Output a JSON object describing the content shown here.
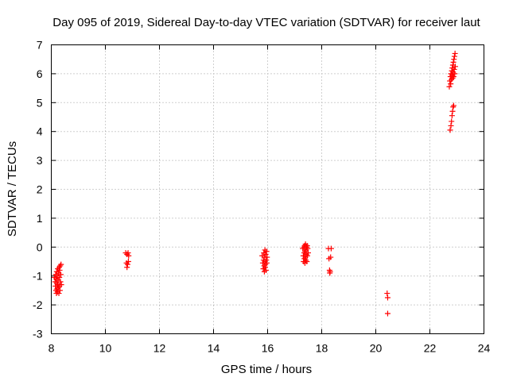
{
  "chart_data": {
    "type": "scatter",
    "title": "Day 095 of 2019, Sidereal Day-to-day VTEC variation (SDTVAR) for receiver laut",
    "xlabel": "GPS time / hours",
    "ylabel": "SDTVAR / TECUs",
    "xlim": [
      8,
      24
    ],
    "ylim": [
      -3,
      7
    ],
    "x_ticks": [
      "8",
      "10",
      "12",
      "14",
      "16",
      "18",
      "20",
      "22",
      "24"
    ],
    "y_ticks": [
      "-3",
      "-2",
      "-1",
      "0",
      "1",
      "2",
      "3",
      "4",
      "5",
      "6",
      "7"
    ],
    "x_tick_values": [
      8,
      10,
      12,
      14,
      16,
      18,
      20,
      22,
      24
    ],
    "y_tick_values": [
      -3,
      -2,
      -1,
      0,
      1,
      2,
      3,
      4,
      5,
      6,
      7
    ],
    "grid": true,
    "marker": "+",
    "series": [
      {
        "name": "SDTVAR",
        "color": "#ff0000",
        "points": [
          [
            8.12,
            -1.05
          ],
          [
            8.14,
            -1.2
          ],
          [
            8.15,
            -1.35
          ],
          [
            8.16,
            -0.95
          ],
          [
            8.17,
            -1.5
          ],
          [
            8.18,
            -1.1
          ],
          [
            8.19,
            -1.6
          ],
          [
            8.2,
            -0.85
          ],
          [
            8.2,
            -1.25
          ],
          [
            8.21,
            -1.45
          ],
          [
            8.22,
            -1.0
          ],
          [
            8.23,
            -1.55
          ],
          [
            8.24,
            -0.75
          ],
          [
            8.24,
            -1.3
          ],
          [
            8.25,
            -1.15
          ],
          [
            8.26,
            -1.4
          ],
          [
            8.27,
            -0.9
          ],
          [
            8.28,
            -1.6
          ],
          [
            8.29,
            -0.7
          ],
          [
            8.3,
            -1.05
          ],
          [
            8.3,
            -1.35
          ],
          [
            8.31,
            -0.8
          ],
          [
            8.32,
            -1.5
          ],
          [
            8.33,
            -0.65
          ],
          [
            8.34,
            -1.2
          ],
          [
            8.35,
            -0.95
          ],
          [
            8.36,
            -0.6
          ],
          [
            8.37,
            -1.3
          ],
          [
            10.75,
            -0.2
          ],
          [
            10.78,
            -0.55
          ],
          [
            10.8,
            -0.25
          ],
          [
            10.8,
            -0.7
          ],
          [
            10.82,
            -0.6
          ],
          [
            10.84,
            -0.2
          ],
          [
            10.85,
            -0.5
          ],
          [
            10.86,
            -0.3
          ],
          [
            15.8,
            -0.3
          ],
          [
            15.82,
            -0.55
          ],
          [
            15.84,
            -0.75
          ],
          [
            15.85,
            -0.45
          ],
          [
            15.86,
            -0.2
          ],
          [
            15.87,
            -0.65
          ],
          [
            15.88,
            -0.85
          ],
          [
            15.89,
            -0.35
          ],
          [
            15.9,
            -0.5
          ],
          [
            15.9,
            -0.1
          ],
          [
            15.91,
            -0.7
          ],
          [
            15.92,
            -0.6
          ],
          [
            15.93,
            -0.25
          ],
          [
            15.94,
            -0.8
          ],
          [
            15.95,
            -0.45
          ],
          [
            15.96,
            -0.15
          ],
          [
            15.97,
            -0.55
          ],
          [
            15.98,
            -0.35
          ],
          [
            17.3,
            -0.05
          ],
          [
            17.32,
            -0.3
          ],
          [
            17.33,
            -0.5
          ],
          [
            17.34,
            0.0
          ],
          [
            17.35,
            -0.2
          ],
          [
            17.36,
            -0.4
          ],
          [
            17.37,
            0.05
          ],
          [
            17.38,
            -0.55
          ],
          [
            17.39,
            -0.15
          ],
          [
            17.4,
            -0.35
          ],
          [
            17.4,
            0.1
          ],
          [
            17.41,
            -0.45
          ],
          [
            17.42,
            -0.1
          ],
          [
            17.43,
            -0.25
          ],
          [
            17.44,
            0.0
          ],
          [
            17.45,
            -0.5
          ],
          [
            17.46,
            0.05
          ],
          [
            17.47,
            -0.3
          ],
          [
            17.48,
            -0.05
          ],
          [
            17.5,
            -0.2
          ],
          [
            18.25,
            -0.05
          ],
          [
            18.27,
            -0.4
          ],
          [
            18.29,
            -0.8
          ],
          [
            18.3,
            -0.9
          ],
          [
            18.31,
            -0.85
          ],
          [
            18.33,
            -0.35
          ],
          [
            18.35,
            -0.05
          ],
          [
            20.42,
            -1.6
          ],
          [
            20.44,
            -1.75
          ],
          [
            20.44,
            -2.3
          ],
          [
            22.75,
            4.05
          ],
          [
            22.78,
            4.2
          ],
          [
            22.8,
            4.35
          ],
          [
            22.82,
            4.55
          ],
          [
            22.84,
            4.7
          ],
          [
            22.86,
            4.85
          ],
          [
            22.88,
            4.9
          ],
          [
            22.72,
            5.55
          ],
          [
            22.74,
            5.75
          ],
          [
            22.76,
            5.9
          ],
          [
            22.77,
            5.65
          ],
          [
            22.78,
            6.0
          ],
          [
            22.8,
            5.8
          ],
          [
            22.81,
            6.1
          ],
          [
            22.82,
            5.95
          ],
          [
            22.83,
            6.2
          ],
          [
            22.84,
            5.85
          ],
          [
            22.85,
            6.3
          ],
          [
            22.86,
            6.05
          ],
          [
            22.87,
            6.4
          ],
          [
            22.88,
            5.9
          ],
          [
            22.89,
            6.5
          ],
          [
            22.9,
            6.15
          ],
          [
            22.91,
            6.6
          ],
          [
            22.92,
            6.0
          ],
          [
            22.93,
            6.7
          ],
          [
            22.94,
            6.25
          ]
        ]
      }
    ]
  }
}
